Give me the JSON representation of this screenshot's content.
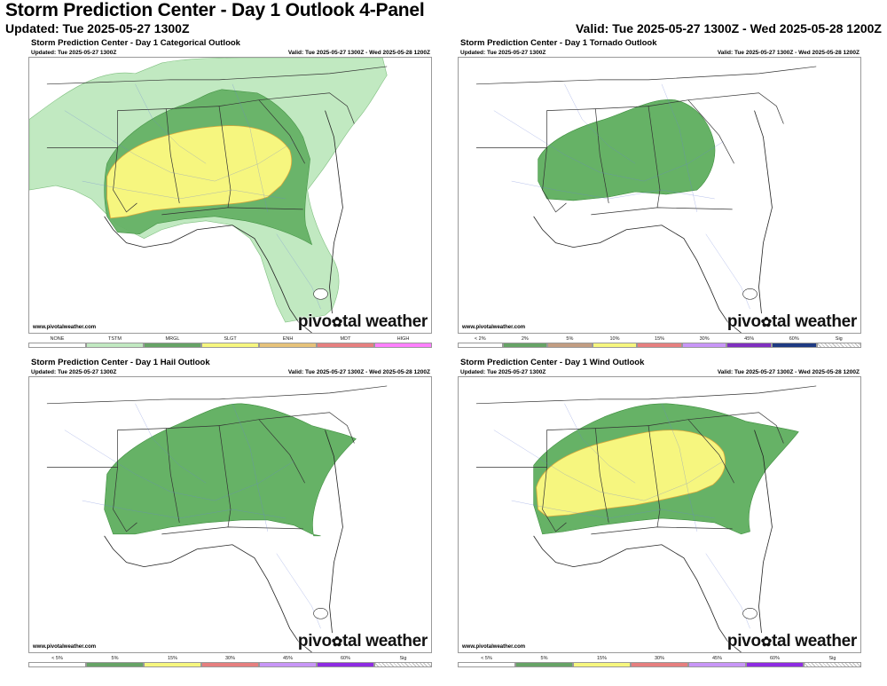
{
  "header": {
    "title": "Storm Prediction Center - Day 1 Outlook 4-Panel",
    "updated": "Updated: Tue 2025-05-27 1300Z",
    "valid": "Valid: Tue 2025-05-27 1300Z - Wed 2025-05-28 1200Z"
  },
  "credit": "www.pivotalweather.com",
  "logo": {
    "left": "pivo",
    "star": "✿",
    "right": "tal weather"
  },
  "panels": [
    {
      "title": "Storm Prediction Center - Day 1 Categorical Outlook",
      "updated": "Updated: Tue 2025-05-27 1300Z",
      "valid": "Valid: Tue 2025-05-27 1300Z - Wed 2025-05-28 1200Z",
      "legend": [
        {
          "label": "NONE",
          "color": "#ffffff"
        },
        {
          "label": "TSTM",
          "color": "#c1e9c1"
        },
        {
          "label": "MRGL",
          "color": "#66a366"
        },
        {
          "label": "SLGT",
          "color": "#f6f67f"
        },
        {
          "label": "ENH",
          "color": "#e6c27a"
        },
        {
          "label": "MDT",
          "color": "#e67f7f"
        },
        {
          "label": "HIGH",
          "color": "#ff80ff"
        }
      ]
    },
    {
      "title": "Storm Prediction Center - Day 1 Tornado Outlook",
      "updated": "Updated: Tue 2025-05-27 1300Z",
      "valid": "Valid: Tue 2025-05-27 1300Z - Wed 2025-05-28 1200Z",
      "legend": [
        {
          "label": "< 2%",
          "color": "#ffffff"
        },
        {
          "label": "2%",
          "color": "#66a366"
        },
        {
          "label": "5%",
          "color": "#c29d82"
        },
        {
          "label": "10%",
          "color": "#f6f67f"
        },
        {
          "label": "15%",
          "color": "#e67f7f"
        },
        {
          "label": "30%",
          "color": "#c896f7"
        },
        {
          "label": "45%",
          "color": "#7f2fbf"
        },
        {
          "label": "60%",
          "color": "#1e3a82"
        },
        {
          "label": "Sig",
          "color": "hatch"
        }
      ]
    },
    {
      "title": "Storm Prediction Center - Day 1 Hail Outlook",
      "updated": "Updated: Tue 2025-05-27 1300Z",
      "valid": "Valid: Tue 2025-05-27 1300Z - Wed 2025-05-28 1200Z",
      "legend": [
        {
          "label": "< 5%",
          "color": "#ffffff"
        },
        {
          "label": "5%",
          "color": "#66a366"
        },
        {
          "label": "15%",
          "color": "#f6f67f"
        },
        {
          "label": "30%",
          "color": "#e67f7f"
        },
        {
          "label": "45%",
          "color": "#c896f7"
        },
        {
          "label": "60%",
          "color": "#8e2be2"
        },
        {
          "label": "Sig",
          "color": "hatch"
        }
      ]
    },
    {
      "title": "Storm Prediction Center - Day 1 Wind Outlook",
      "updated": "Updated: Tue 2025-05-27 1300Z",
      "valid": "Valid: Tue 2025-05-27 1300Z - Wed 2025-05-28 1200Z",
      "legend": [
        {
          "label": "< 5%",
          "color": "#ffffff"
        },
        {
          "label": "5%",
          "color": "#66a366"
        },
        {
          "label": "15%",
          "color": "#f6f67f"
        },
        {
          "label": "30%",
          "color": "#e67f7f"
        },
        {
          "label": "45%",
          "color": "#c896f7"
        },
        {
          "label": "60%",
          "color": "#8e2be2"
        },
        {
          "label": "Sig",
          "color": "hatch"
        }
      ]
    }
  ]
}
